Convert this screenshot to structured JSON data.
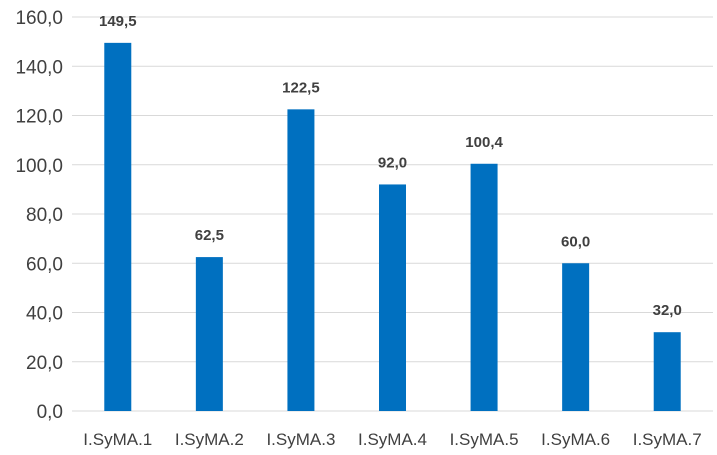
{
  "chart_data": {
    "type": "bar",
    "title": "",
    "xlabel": "",
    "ylabel": "",
    "categories": [
      "I.SyMA.1",
      "I.SyMA.2",
      "I.SyMA.3",
      "I.SyMA.4",
      "I.SyMA.5",
      "I.SyMA.6",
      "I.SyMA.7"
    ],
    "values": [
      149.5,
      62.5,
      122.5,
      92.0,
      100.4,
      60.0,
      32.0
    ],
    "data_labels": [
      "149,5",
      "62,5",
      "122,5",
      "92,0",
      "100,4",
      "60,0",
      "32,0"
    ],
    "ylim": [
      0,
      160
    ],
    "yticks": [
      0,
      20,
      40,
      60,
      80,
      100,
      120,
      140,
      160
    ],
    "ytick_labels": [
      "0,0",
      "20,0",
      "40,0",
      "60,0",
      "80,0",
      "100,0",
      "120,0",
      "140,0",
      "160,0"
    ],
    "grid": true,
    "legend": "none",
    "bar_color": "#0070c0"
  }
}
